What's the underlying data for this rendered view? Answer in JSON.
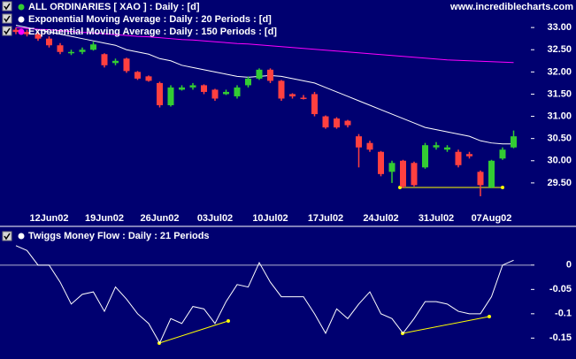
{
  "chart_data": [
    {
      "type": "candlestick",
      "title": "ALL ORDINARIES  [ XAO ] : Daily : [d]",
      "source": "www.incrediblecharts.com",
      "categories": [
        null,
        null,
        null,
        "12Jun02",
        null,
        null,
        null,
        null,
        "19Jun02",
        null,
        null,
        null,
        null,
        "26Jun02",
        null,
        null,
        null,
        null,
        "03Jul02",
        null,
        null,
        null,
        null,
        "10Jul02",
        null,
        null,
        null,
        null,
        "17Jul02",
        null,
        null,
        null,
        null,
        "24Jul02",
        null,
        null,
        null,
        null,
        "31Jul02",
        null,
        null,
        null,
        null,
        "07Aug02",
        null,
        null
      ],
      "open": [
        32.95,
        32.9,
        32.85,
        32.75,
        32.6,
        32.42,
        32.45,
        32.5,
        32.4,
        32.2,
        32.3,
        32.0,
        31.9,
        31.75,
        31.25,
        31.6,
        31.65,
        31.7,
        31.6,
        31.5,
        31.45,
        31.7,
        31.85,
        32.05,
        31.8,
        31.5,
        31.42,
        31.5,
        31.0,
        30.95,
        30.9,
        30.55,
        30.4,
        30.2,
        29.75,
        30.0,
        29.95,
        29.85,
        30.3,
        30.25,
        30.2,
        30.15,
        29.75,
        29.4,
        30.05,
        30.3
      ],
      "high": [
        33.0,
        32.95,
        32.9,
        32.8,
        32.65,
        32.5,
        32.55,
        32.68,
        32.42,
        32.3,
        32.32,
        32.02,
        31.92,
        31.78,
        31.7,
        31.7,
        31.75,
        31.72,
        31.62,
        31.6,
        31.7,
        31.9,
        32.08,
        32.08,
        31.82,
        31.52,
        31.48,
        31.55,
        31.02,
        30.98,
        30.92,
        30.6,
        30.45,
        30.22,
        30.0,
        30.02,
        29.98,
        30.4,
        30.42,
        30.35,
        30.25,
        30.2,
        29.78,
        30.02,
        30.3,
        30.68
      ],
      "low": [
        32.85,
        32.8,
        32.7,
        32.55,
        32.4,
        32.38,
        32.4,
        32.48,
        32.1,
        32.15,
        31.98,
        31.82,
        31.78,
        31.2,
        31.22,
        31.58,
        31.6,
        31.5,
        31.35,
        31.48,
        31.4,
        31.65,
        31.82,
        31.75,
        31.35,
        31.4,
        31.38,
        31.0,
        30.72,
        30.72,
        30.75,
        29.85,
        30.2,
        29.65,
        29.5,
        29.38,
        29.42,
        29.82,
        30.25,
        30.2,
        29.85,
        30.05,
        29.2,
        29.38,
        30.02,
        30.28
      ],
      "close": [
        32.9,
        32.85,
        32.75,
        32.6,
        32.45,
        32.45,
        32.5,
        32.62,
        32.15,
        32.25,
        32.02,
        31.85,
        31.8,
        31.25,
        31.65,
        31.65,
        31.7,
        31.55,
        31.4,
        31.55,
        31.65,
        31.85,
        32.05,
        31.8,
        31.4,
        31.45,
        31.4,
        31.05,
        30.75,
        30.75,
        30.8,
        30.3,
        30.25,
        29.7,
        29.95,
        29.42,
        29.45,
        30.35,
        30.35,
        30.3,
        29.9,
        30.1,
        29.45,
        30.0,
        30.25,
        30.55
      ],
      "up_color": "#33cc33",
      "down_color": "#ff4040",
      "series": [
        {
          "name": "Exponential Moving Average : Daily : 20 Periods : [d]",
          "color": "#ffffff",
          "values": [
            33.05,
            33.0,
            32.95,
            32.9,
            32.85,
            32.8,
            32.75,
            32.7,
            32.65,
            32.6,
            32.5,
            32.45,
            32.4,
            32.3,
            32.25,
            32.15,
            32.1,
            32.05,
            32.0,
            31.95,
            31.9,
            31.88,
            31.9,
            31.92,
            31.9,
            31.85,
            31.8,
            31.75,
            31.65,
            31.55,
            31.45,
            31.35,
            31.25,
            31.15,
            31.05,
            30.95,
            30.85,
            30.75,
            30.7,
            30.65,
            30.6,
            30.55,
            30.45,
            30.4,
            30.38,
            30.38
          ]
        },
        {
          "name": "Exponential Moving Average : Daily : 150 Periods : [d]",
          "color": "#ff00ff",
          "values": [
            33.0,
            32.98,
            32.96,
            32.95,
            32.93,
            32.91,
            32.89,
            32.88,
            32.86,
            32.84,
            32.82,
            32.8,
            32.79,
            32.77,
            32.75,
            32.73,
            32.72,
            32.7,
            32.68,
            32.66,
            32.64,
            32.63,
            32.61,
            32.59,
            32.57,
            32.55,
            32.53,
            32.51,
            32.49,
            32.47,
            32.45,
            32.43,
            32.41,
            32.39,
            32.37,
            32.35,
            32.33,
            32.31,
            32.29,
            32.27,
            32.26,
            32.25,
            32.24,
            32.23,
            32.22,
            32.21
          ]
        }
      ],
      "ylim": [
        28.94,
        33.62
      ],
      "yticks": [
        {
          "value": 29.5,
          "label": "29.50"
        },
        {
          "value": 30,
          "label": "30.00"
        },
        {
          "value": 30.5,
          "label": "30.50"
        },
        {
          "value": 31,
          "label": "31.00"
        },
        {
          "value": 31.5,
          "label": "31.50"
        },
        {
          "value": 32,
          "label": "32.00"
        },
        {
          "value": 32.5,
          "label": "32.50"
        },
        {
          "value": 33,
          "label": "33.00"
        }
      ]
    },
    {
      "type": "line",
      "categories": [
        null,
        null,
        null,
        null,
        null,
        null,
        null,
        null,
        null,
        null,
        null,
        null,
        null,
        null,
        null,
        null,
        null,
        null,
        null,
        null,
        null,
        null,
        null,
        null,
        null,
        null,
        null,
        null,
        null,
        null,
        null,
        null,
        null,
        null,
        null,
        null,
        null,
        null,
        null,
        null,
        null,
        null,
        null,
        null,
        null,
        null
      ],
      "series": [
        {
          "name": "Twiggs Money Flow : Daily : 21 Periods",
          "color": "#ffffff",
          "values": [
            0.04,
            0.03,
            0,
            0,
            -0.035,
            -0.08,
            -0.06,
            -0.055,
            -0.095,
            -0.045,
            -0.07,
            -0.1,
            -0.12,
            -0.16,
            -0.11,
            -0.12,
            -0.085,
            -0.09,
            -0.12,
            -0.075,
            -0.04,
            -0.045,
            0.005,
            -0.035,
            -0.065,
            -0.065,
            -0.065,
            -0.1,
            -0.14,
            -0.09,
            -0.11,
            -0.08,
            -0.055,
            -0.1,
            -0.11,
            -0.14,
            -0.11,
            -0.075,
            -0.075,
            -0.08,
            -0.095,
            -0.1,
            -0.1,
            -0.065,
            0,
            0.01
          ]
        }
      ],
      "reference_line": 0,
      "ylim": [
        -0.193,
        0.076
      ],
      "yticks": [
        0,
        -0.05,
        -0.1,
        -0.15
      ]
    }
  ]
}
